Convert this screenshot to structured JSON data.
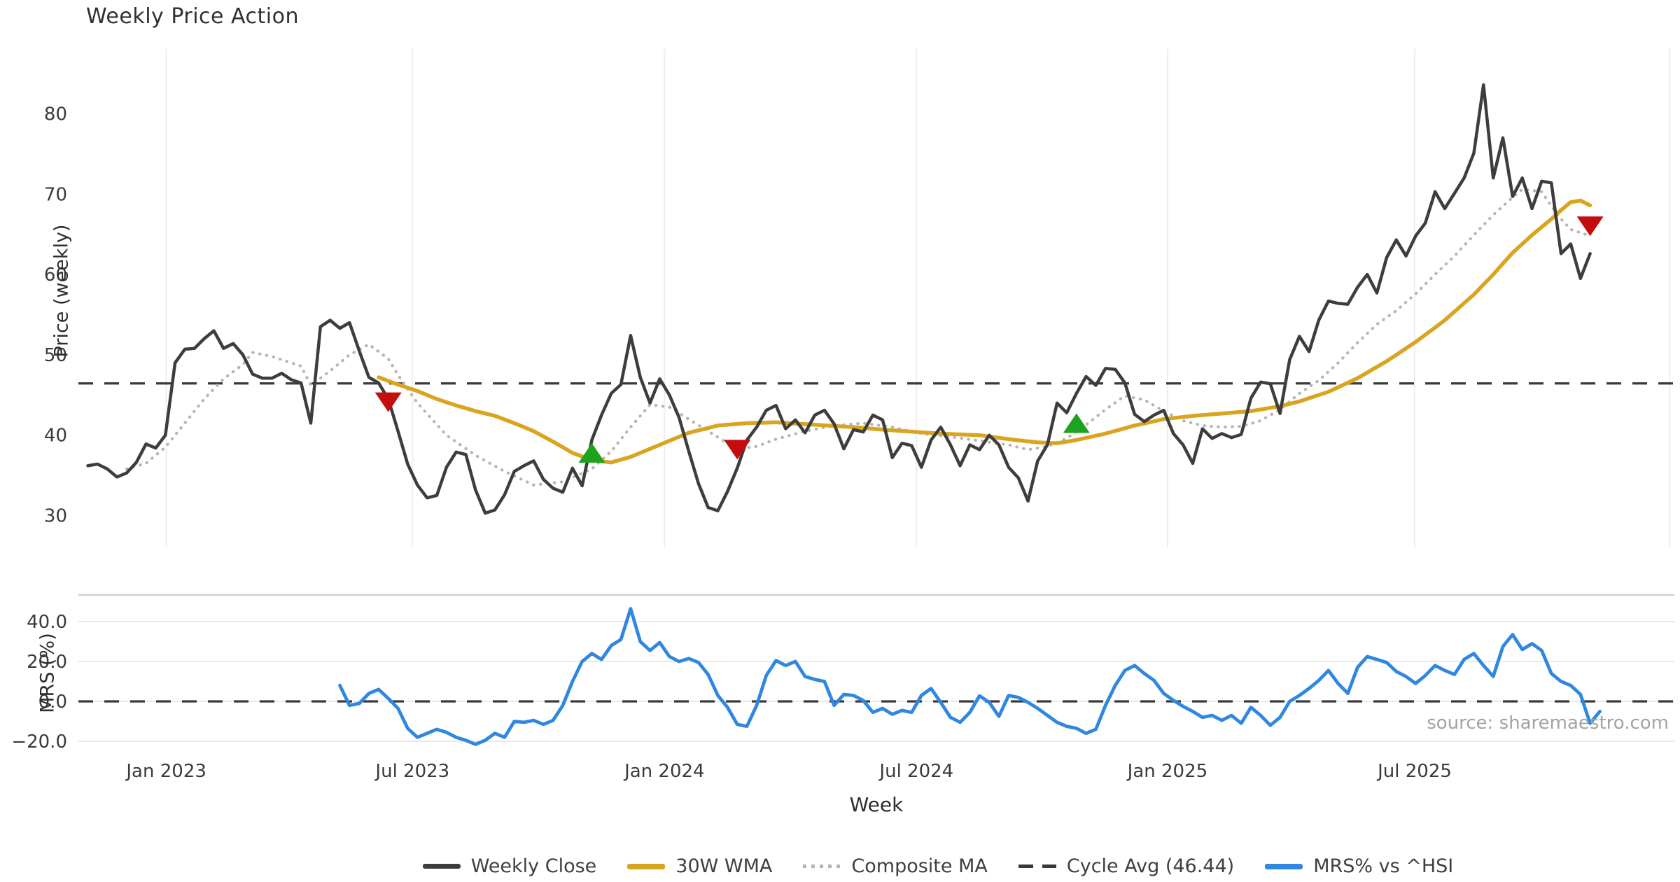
{
  "page": {
    "title": "Weekly Price Action",
    "source": "source: sharemaestro.com"
  },
  "legend": {
    "items": [
      {
        "label": "Weekly Close",
        "key": "close"
      },
      {
        "label": "30W WMA",
        "key": "wma"
      },
      {
        "label": "Composite MA",
        "key": "comp"
      },
      {
        "label": "Cycle Avg (46.44)",
        "key": "cycle"
      },
      {
        "label": "MRS% vs ^HSI",
        "key": "mrs"
      }
    ]
  },
  "chart_data": {
    "type": "line",
    "title": "Weekly Price Action",
    "xlabel": "Week",
    "x_ticks": [
      {
        "pos": 8.1,
        "label": "Jan 2023"
      },
      {
        "pos": 33.5,
        "label": "Jul 2023"
      },
      {
        "pos": 59.5,
        "label": "Jan 2024"
      },
      {
        "pos": 85.5,
        "label": "Jul 2024"
      },
      {
        "pos": 111.4,
        "label": "Jan 2025"
      },
      {
        "pos": 136.9,
        "label": "Jul 2025"
      },
      {
        "pos": 163.2,
        "label": ""
      }
    ],
    "price_axis": {
      "label": "Price (weekly)",
      "ylim": [
        26,
        88
      ],
      "ticks": [
        {
          "v": 80,
          "label": "80"
        },
        {
          "v": 70,
          "label": "70"
        },
        {
          "v": 60,
          "label": "60"
        },
        {
          "v": 50,
          "label": "50"
        },
        {
          "v": 40,
          "label": "40"
        },
        {
          "v": 30,
          "label": "30"
        }
      ]
    },
    "mrs_axis": {
      "label": "MRS (%)",
      "ylim": [
        -27,
        53
      ],
      "ticks": [
        {
          "v": 40,
          "label": "40.0"
        },
        {
          "v": 20,
          "label": "20.0"
        },
        {
          "v": 0,
          "label": "0.0"
        },
        {
          "v": -20,
          "label": "−20.0"
        }
      ]
    },
    "cycle_avg": 46.44,
    "series": {
      "weekly_close": {
        "name": "Weekly Close",
        "start_week": 0,
        "values": [
          36.2,
          36.4,
          35.8,
          34.8,
          35.3,
          36.6,
          38.9,
          38.4,
          40.0,
          49.0,
          50.7,
          50.8,
          52.0,
          53.0,
          50.8,
          51.4,
          50.0,
          47.6,
          47.1,
          47.1,
          47.7,
          46.9,
          46.5,
          41.5,
          53.5,
          54.3,
          53.3,
          54.0,
          50.5,
          47.2,
          46.5,
          44.5,
          40.5,
          36.4,
          33.8,
          32.2,
          32.5,
          36.0,
          37.9,
          37.6,
          33.2,
          30.3,
          30.7,
          32.6,
          35.5,
          36.2,
          36.8,
          34.5,
          33.4,
          32.9,
          35.9,
          33.7,
          39.4,
          42.5,
          45.2,
          46.3,
          52.4,
          47.2,
          44.0,
          47.0,
          45.0,
          42.2,
          38.0,
          34.0,
          31.0,
          30.6,
          33.0,
          35.9,
          39.4,
          41.0,
          43.1,
          43.7,
          40.8,
          41.9,
          40.3,
          42.5,
          43.1,
          41.4,
          38.3,
          40.7,
          40.4,
          42.5,
          41.9,
          37.2,
          39.0,
          38.7,
          36.0,
          39.4,
          41.0,
          38.8,
          36.2,
          38.8,
          38.2,
          40.0,
          38.8,
          36.0,
          34.7,
          31.8,
          36.8,
          38.8,
          44.0,
          42.8,
          45.2,
          47.3,
          46.2,
          48.3,
          48.2,
          46.5,
          42.6,
          41.7,
          42.5,
          43.1,
          40.2,
          38.8,
          36.5,
          40.8,
          39.6,
          40.2,
          39.7,
          40.1,
          44.6,
          46.6,
          46.4,
          42.7,
          49.4,
          52.3,
          50.4,
          54.3,
          56.7,
          56.4,
          56.3,
          58.4,
          60.0,
          57.7,
          62.1,
          64.3,
          62.3,
          64.8,
          66.4,
          70.3,
          68.2,
          70.1,
          72.0,
          75.1,
          83.6,
          72.0,
          77.0,
          69.7,
          72.0,
          68.2,
          71.6,
          71.4,
          62.6,
          63.8,
          59.5,
          62.6
        ]
      },
      "wma30": {
        "name": "30W WMA",
        "points": [
          [
            30,
            47.2
          ],
          [
            32,
            46.3
          ],
          [
            34,
            45.5
          ],
          [
            36,
            44.5
          ],
          [
            38,
            43.7
          ],
          [
            40,
            43.0
          ],
          [
            42,
            42.4
          ],
          [
            44,
            41.5
          ],
          [
            46,
            40.5
          ],
          [
            48,
            39.2
          ],
          [
            50,
            37.8
          ],
          [
            52,
            36.9
          ],
          [
            54,
            36.6
          ],
          [
            56,
            37.3
          ],
          [
            59,
            38.8
          ],
          [
            62,
            40.3
          ],
          [
            65,
            41.2
          ],
          [
            68,
            41.5
          ],
          [
            71,
            41.6
          ],
          [
            75,
            41.3
          ],
          [
            79,
            41.0
          ],
          [
            83,
            40.6
          ],
          [
            88,
            40.2
          ],
          [
            92,
            40.0
          ],
          [
            95,
            39.5
          ],
          [
            98,
            39.1
          ],
          [
            100,
            39.0
          ],
          [
            102,
            39.4
          ],
          [
            105,
            40.2
          ],
          [
            108,
            41.2
          ],
          [
            111,
            42.0
          ],
          [
            114,
            42.4
          ],
          [
            117,
            42.7
          ],
          [
            120,
            43.0
          ],
          [
            123,
            43.6
          ],
          [
            125,
            44.2
          ],
          [
            128,
            45.4
          ],
          [
            131,
            47.1
          ],
          [
            134,
            49.2
          ],
          [
            137,
            51.6
          ],
          [
            140,
            54.3
          ],
          [
            143,
            57.5
          ],
          [
            145,
            60.0
          ],
          [
            147,
            62.7
          ],
          [
            149,
            64.9
          ],
          [
            151,
            66.9
          ],
          [
            152,
            68.0
          ],
          [
            153,
            69.0
          ],
          [
            154,
            69.2
          ],
          [
            155,
            68.6
          ]
        ]
      },
      "composite": {
        "name": "Composite MA",
        "points": [
          [
            4,
            35.8
          ],
          [
            6,
            36.5
          ],
          [
            8,
            38.5
          ],
          [
            10,
            41.5
          ],
          [
            12,
            44.5
          ],
          [
            14,
            47.0
          ],
          [
            16,
            48.8
          ],
          [
            17,
            50.3
          ],
          [
            19,
            49.8
          ],
          [
            22,
            48.6
          ],
          [
            23,
            46.2
          ],
          [
            25,
            48.0
          ],
          [
            27,
            50.0
          ],
          [
            29,
            51.3
          ],
          [
            31,
            49.5
          ],
          [
            32,
            47.5
          ],
          [
            34,
            44.0
          ],
          [
            37,
            40.0
          ],
          [
            40,
            37.5
          ],
          [
            43,
            35.5
          ],
          [
            46,
            33.8
          ],
          [
            49,
            34.2
          ],
          [
            52,
            35.8
          ],
          [
            54,
            38.0
          ],
          [
            56,
            41.0
          ],
          [
            58,
            43.8
          ],
          [
            60,
            43.5
          ],
          [
            62,
            42.0
          ],
          [
            64,
            40.5
          ],
          [
            66,
            39.0
          ],
          [
            67,
            38.3
          ],
          [
            69,
            38.6
          ],
          [
            71,
            39.5
          ],
          [
            74,
            40.5
          ],
          [
            77,
            41.2
          ],
          [
            80,
            41.5
          ],
          [
            83,
            41.0
          ],
          [
            86,
            40.2
          ],
          [
            89,
            39.8
          ],
          [
            92,
            39.3
          ],
          [
            95,
            38.8
          ],
          [
            97,
            38.2
          ],
          [
            99,
            38.6
          ],
          [
            101,
            39.6
          ],
          [
            103,
            41.3
          ],
          [
            105,
            43.2
          ],
          [
            107,
            44.9
          ],
          [
            109,
            44.4
          ],
          [
            111,
            43.0
          ],
          [
            113,
            41.8
          ],
          [
            115,
            41.2
          ],
          [
            117,
            41.0
          ],
          [
            119,
            41.1
          ],
          [
            121,
            41.8
          ],
          [
            123,
            43.2
          ],
          [
            125,
            45.2
          ],
          [
            127,
            46.8
          ],
          [
            129,
            49.0
          ],
          [
            131,
            51.5
          ],
          [
            133,
            53.8
          ],
          [
            135,
            55.5
          ],
          [
            137,
            57.6
          ],
          [
            139,
            60.0
          ],
          [
            141,
            62.3
          ],
          [
            143,
            64.9
          ],
          [
            145,
            67.4
          ],
          [
            147,
            69.6
          ],
          [
            148,
            70.6
          ],
          [
            150,
            70.3
          ],
          [
            151,
            68.5
          ],
          [
            152,
            66.9
          ],
          [
            153,
            65.6
          ],
          [
            155,
            64.8
          ]
        ]
      },
      "mrs": {
        "name": "MRS% vs ^HSI",
        "start_week": 26,
        "values": [
          8,
          -2,
          -1,
          4,
          6,
          1.5,
          -3.5,
          -13.5,
          -18,
          -16,
          -14,
          -15.5,
          -18,
          -19.5,
          -21.5,
          -19.5,
          -16,
          -18,
          -10,
          -10.5,
          -9.5,
          -11.5,
          -9.5,
          -2,
          10,
          20,
          24,
          21,
          28,
          31,
          46.5,
          30,
          25.5,
          29.5,
          22.5,
          20,
          21.5,
          19.5,
          13.5,
          3,
          -3,
          -11.5,
          -12.5,
          -2,
          13,
          20.5,
          18,
          20,
          12.5,
          11,
          10,
          -2,
          3.5,
          3,
          0.5,
          -5.5,
          -3.5,
          -6.5,
          -4.5,
          -5.5,
          3,
          6.5,
          -0.5,
          -8,
          -10.5,
          -5.5,
          2.8,
          -0.5,
          -7.5,
          3,
          2,
          -0.5,
          -3.5,
          -7,
          -10.5,
          -12.5,
          -13.5,
          -16,
          -14,
          -2,
          8,
          15.5,
          18,
          14,
          10.5,
          4,
          0.5,
          -2.5,
          -5,
          -8,
          -7,
          -9.5,
          -7,
          -11,
          -3,
          -7,
          -12,
          -8,
          0,
          3,
          6.5,
          10.5,
          15.5,
          9,
          4,
          17,
          22.5,
          21,
          19.5,
          15,
          12.5,
          9,
          13,
          18,
          15.5,
          13.5,
          21,
          24,
          18,
          12.5,
          27.5,
          33.5,
          26,
          29,
          25.5,
          14,
          10,
          8,
          3.5,
          -11,
          -5
        ]
      }
    },
    "markers": [
      {
        "week": 31,
        "price": 44.1,
        "type": "sell"
      },
      {
        "week": 52,
        "price": 37.8,
        "type": "buy"
      },
      {
        "week": 67,
        "price": 38.2,
        "type": "sell"
      },
      {
        "week": 102,
        "price": 41.5,
        "type": "buy"
      },
      {
        "week": 155,
        "price": 66.0,
        "type": "sell"
      }
    ],
    "colors": {
      "close": "#3d3d3d",
      "wma": "#d9a521",
      "composite": "#b5b5b5",
      "cycle": "#3a3a3a",
      "mrs": "#2f87e0",
      "buy": "#1fa31f",
      "sell": "#c40d0d",
      "grid_vertical": "#ededf2",
      "grid_horizontal": "#e9e9ed",
      "panel_border": "#cfcfcf",
      "tick_text": "#3a3a3a"
    },
    "legend_position": "bottom-center",
    "grid": {
      "price_panel": "vertical-only",
      "mrs_panel": "horizontal-only"
    }
  }
}
